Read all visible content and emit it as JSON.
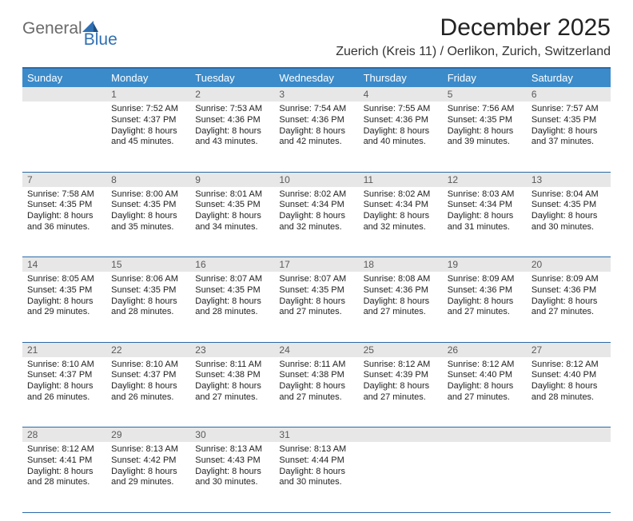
{
  "brand": {
    "word1": "General",
    "word2": "Blue"
  },
  "title": "December 2025",
  "location": "Zuerich (Kreis 11) / Oerlikon, Zurich, Switzerland",
  "colors": {
    "header_bg": "#3b8bca",
    "header_fg": "#ffffff",
    "daynum_bg": "#e7e7e7",
    "daynum_fg": "#5a5a5a",
    "rule": "#2b6aa8",
    "logo_gray": "#6a6a6a",
    "logo_blue": "#2f6fb3"
  },
  "weekdays": [
    "Sunday",
    "Monday",
    "Tuesday",
    "Wednesday",
    "Thursday",
    "Friday",
    "Saturday"
  ],
  "weeks": [
    [
      {
        "day": "",
        "lines": []
      },
      {
        "day": "1",
        "lines": [
          "Sunrise: 7:52 AM",
          "Sunset: 4:37 PM",
          "Daylight: 8 hours and 45 minutes."
        ]
      },
      {
        "day": "2",
        "lines": [
          "Sunrise: 7:53 AM",
          "Sunset: 4:36 PM",
          "Daylight: 8 hours and 43 minutes."
        ]
      },
      {
        "day": "3",
        "lines": [
          "Sunrise: 7:54 AM",
          "Sunset: 4:36 PM",
          "Daylight: 8 hours and 42 minutes."
        ]
      },
      {
        "day": "4",
        "lines": [
          "Sunrise: 7:55 AM",
          "Sunset: 4:36 PM",
          "Daylight: 8 hours and 40 minutes."
        ]
      },
      {
        "day": "5",
        "lines": [
          "Sunrise: 7:56 AM",
          "Sunset: 4:35 PM",
          "Daylight: 8 hours and 39 minutes."
        ]
      },
      {
        "day": "6",
        "lines": [
          "Sunrise: 7:57 AM",
          "Sunset: 4:35 PM",
          "Daylight: 8 hours and 37 minutes."
        ]
      }
    ],
    [
      {
        "day": "7",
        "lines": [
          "Sunrise: 7:58 AM",
          "Sunset: 4:35 PM",
          "Daylight: 8 hours and 36 minutes."
        ]
      },
      {
        "day": "8",
        "lines": [
          "Sunrise: 8:00 AM",
          "Sunset: 4:35 PM",
          "Daylight: 8 hours and 35 minutes."
        ]
      },
      {
        "day": "9",
        "lines": [
          "Sunrise: 8:01 AM",
          "Sunset: 4:35 PM",
          "Daylight: 8 hours and 34 minutes."
        ]
      },
      {
        "day": "10",
        "lines": [
          "Sunrise: 8:02 AM",
          "Sunset: 4:34 PM",
          "Daylight: 8 hours and 32 minutes."
        ]
      },
      {
        "day": "11",
        "lines": [
          "Sunrise: 8:02 AM",
          "Sunset: 4:34 PM",
          "Daylight: 8 hours and 32 minutes."
        ]
      },
      {
        "day": "12",
        "lines": [
          "Sunrise: 8:03 AM",
          "Sunset: 4:34 PM",
          "Daylight: 8 hours and 31 minutes."
        ]
      },
      {
        "day": "13",
        "lines": [
          "Sunrise: 8:04 AM",
          "Sunset: 4:35 PM",
          "Daylight: 8 hours and 30 minutes."
        ]
      }
    ],
    [
      {
        "day": "14",
        "lines": [
          "Sunrise: 8:05 AM",
          "Sunset: 4:35 PM",
          "Daylight: 8 hours and 29 minutes."
        ]
      },
      {
        "day": "15",
        "lines": [
          "Sunrise: 8:06 AM",
          "Sunset: 4:35 PM",
          "Daylight: 8 hours and 28 minutes."
        ]
      },
      {
        "day": "16",
        "lines": [
          "Sunrise: 8:07 AM",
          "Sunset: 4:35 PM",
          "Daylight: 8 hours and 28 minutes."
        ]
      },
      {
        "day": "17",
        "lines": [
          "Sunrise: 8:07 AM",
          "Sunset: 4:35 PM",
          "Daylight: 8 hours and 27 minutes."
        ]
      },
      {
        "day": "18",
        "lines": [
          "Sunrise: 8:08 AM",
          "Sunset: 4:36 PM",
          "Daylight: 8 hours and 27 minutes."
        ]
      },
      {
        "day": "19",
        "lines": [
          "Sunrise: 8:09 AM",
          "Sunset: 4:36 PM",
          "Daylight: 8 hours and 27 minutes."
        ]
      },
      {
        "day": "20",
        "lines": [
          "Sunrise: 8:09 AM",
          "Sunset: 4:36 PM",
          "Daylight: 8 hours and 27 minutes."
        ]
      }
    ],
    [
      {
        "day": "21",
        "lines": [
          "Sunrise: 8:10 AM",
          "Sunset: 4:37 PM",
          "Daylight: 8 hours and 26 minutes."
        ]
      },
      {
        "day": "22",
        "lines": [
          "Sunrise: 8:10 AM",
          "Sunset: 4:37 PM",
          "Daylight: 8 hours and 26 minutes."
        ]
      },
      {
        "day": "23",
        "lines": [
          "Sunrise: 8:11 AM",
          "Sunset: 4:38 PM",
          "Daylight: 8 hours and 27 minutes."
        ]
      },
      {
        "day": "24",
        "lines": [
          "Sunrise: 8:11 AM",
          "Sunset: 4:38 PM",
          "Daylight: 8 hours and 27 minutes."
        ]
      },
      {
        "day": "25",
        "lines": [
          "Sunrise: 8:12 AM",
          "Sunset: 4:39 PM",
          "Daylight: 8 hours and 27 minutes."
        ]
      },
      {
        "day": "26",
        "lines": [
          "Sunrise: 8:12 AM",
          "Sunset: 4:40 PM",
          "Daylight: 8 hours and 27 minutes."
        ]
      },
      {
        "day": "27",
        "lines": [
          "Sunrise: 8:12 AM",
          "Sunset: 4:40 PM",
          "Daylight: 8 hours and 28 minutes."
        ]
      }
    ],
    [
      {
        "day": "28",
        "lines": [
          "Sunrise: 8:12 AM",
          "Sunset: 4:41 PM",
          "Daylight: 8 hours and 28 minutes."
        ]
      },
      {
        "day": "29",
        "lines": [
          "Sunrise: 8:13 AM",
          "Sunset: 4:42 PM",
          "Daylight: 8 hours and 29 minutes."
        ]
      },
      {
        "day": "30",
        "lines": [
          "Sunrise: 8:13 AM",
          "Sunset: 4:43 PM",
          "Daylight: 8 hours and 30 minutes."
        ]
      },
      {
        "day": "31",
        "lines": [
          "Sunrise: 8:13 AM",
          "Sunset: 4:44 PM",
          "Daylight: 8 hours and 30 minutes."
        ]
      },
      {
        "day": "",
        "lines": []
      },
      {
        "day": "",
        "lines": []
      },
      {
        "day": "",
        "lines": []
      }
    ]
  ]
}
